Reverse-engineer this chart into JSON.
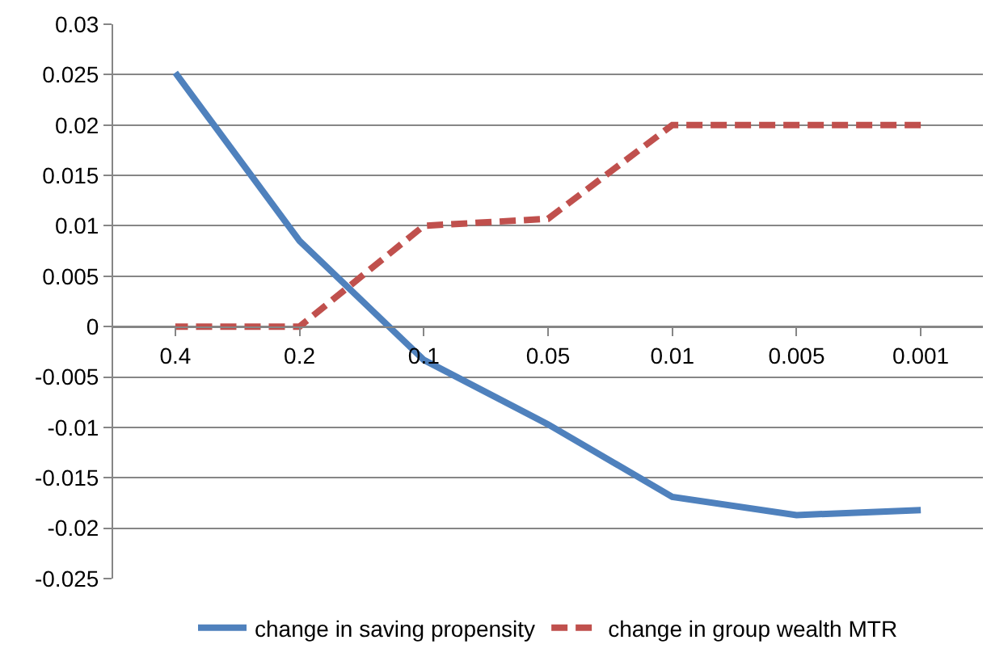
{
  "chart_data": {
    "type": "line",
    "categories": [
      "0.4",
      "0.2",
      "0.1",
      "0.05",
      "0.01",
      "0.005",
      "0.001"
    ],
    "series": [
      {
        "name": "change in saving propensity",
        "color": "#4f81bd",
        "values": [
          0.0252,
          0.0085,
          -0.0033,
          -0.0097,
          -0.0169,
          -0.0187,
          -0.0182
        ],
        "line_style": "solid"
      },
      {
        "name": "change in group wealth MTR",
        "color": "#c0504d",
        "values": [
          0,
          0,
          0.01,
          0.0107,
          0.02,
          0.02,
          0.02
        ],
        "line_style": "dashed"
      }
    ],
    "ylim": [
      -0.025,
      0.03
    ],
    "yticks": [
      -0.025,
      -0.02,
      -0.015,
      -0.01,
      -0.005,
      0,
      0.005,
      0.01,
      0.015,
      0.02,
      0.025,
      0.03
    ],
    "grid": "y",
    "legend": "bottom",
    "marker": "none"
  }
}
